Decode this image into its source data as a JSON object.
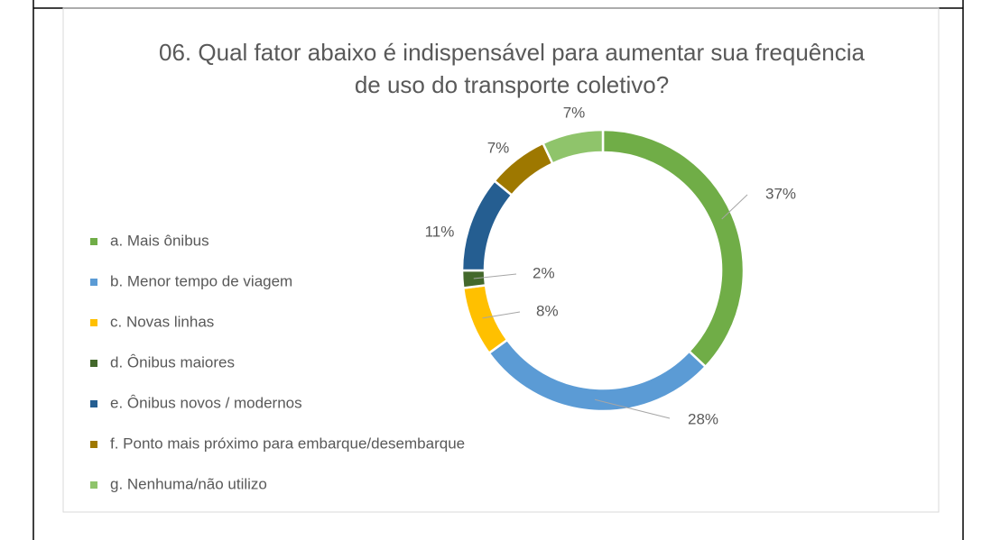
{
  "chart_data": {
    "type": "donut",
    "title": "06. Qual fator abaixo é indispensável para aumentar sua frequência de uso do transporte coletivo?",
    "categories": [
      "a. Mais ônibus",
      "b. Menor tempo de viagem",
      "c. Novas linhas",
      "d. Ônibus maiores",
      "e. Ônibus novos / modernos",
      "f. Ponto mais próximo para embarque/desembarque",
      "g. Nenhuma/não utilizo"
    ],
    "values": [
      37,
      28,
      8,
      2,
      11,
      7,
      7
    ],
    "value_labels": [
      "37%",
      "28%",
      "8%",
      "2%",
      "11%",
      "7%",
      "7%"
    ],
    "colors": [
      "#70ad47",
      "#5b9bd5",
      "#ffc000",
      "#43682b",
      "#255e91",
      "#9e7800",
      "#8fc46b"
    ],
    "legend": "left"
  }
}
